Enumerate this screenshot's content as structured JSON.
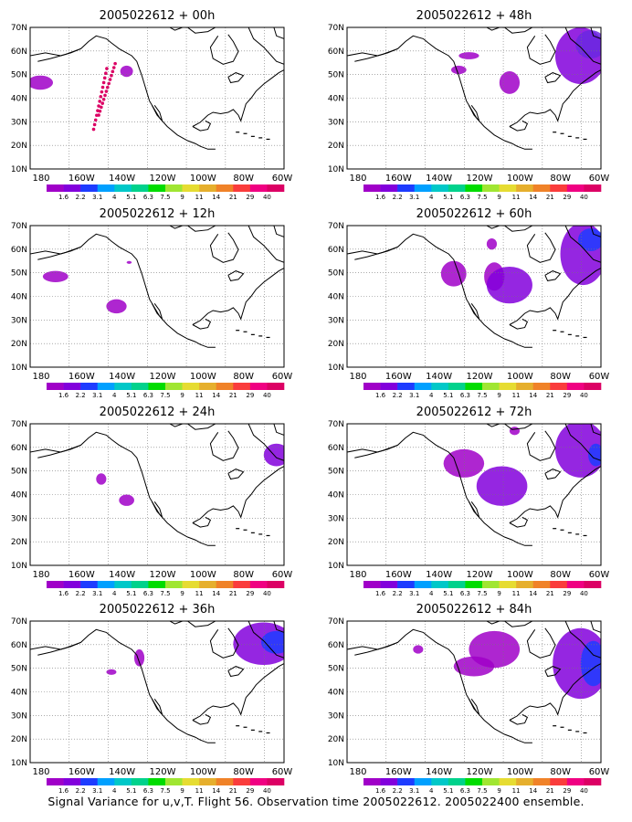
{
  "panels": [
    {
      "title": "2005022612 + 00h"
    },
    {
      "title": "2005022612 + 48h"
    },
    {
      "title": "2005022612 + 12h"
    },
    {
      "title": "2005022612 + 60h"
    },
    {
      "title": "2005022612 + 24h"
    },
    {
      "title": "2005022612 + 72h"
    },
    {
      "title": "2005022612 + 36h"
    },
    {
      "title": "2005022612 + 84h"
    }
  ],
  "axes": {
    "lat_labels": [
      "10N",
      "20N",
      "30N",
      "40N",
      "50N",
      "60N",
      "70N"
    ],
    "lon_labels": [
      "180",
      "160W",
      "140W",
      "120W",
      "100W",
      "80W",
      "60W"
    ]
  },
  "colorbar": {
    "labels": [
      "1.6",
      "2.2",
      "3.1",
      "4",
      "5.1",
      "6.3",
      "7.5",
      "9",
      "11",
      "14",
      "21",
      "29",
      "40"
    ],
    "colors": [
      "#a000c8",
      "#8200dc",
      "#1e3cff",
      "#00a0ff",
      "#00c8c8",
      "#00d28c",
      "#00dc00",
      "#a0e632",
      "#e6dc32",
      "#e6af2d",
      "#f08228",
      "#fa3c3c",
      "#f00082",
      "#dc0064"
    ]
  },
  "caption": "Signal Variance for u,v,T. Flight 56. Observation time 2005022612. 2005022400 ensemble."
}
